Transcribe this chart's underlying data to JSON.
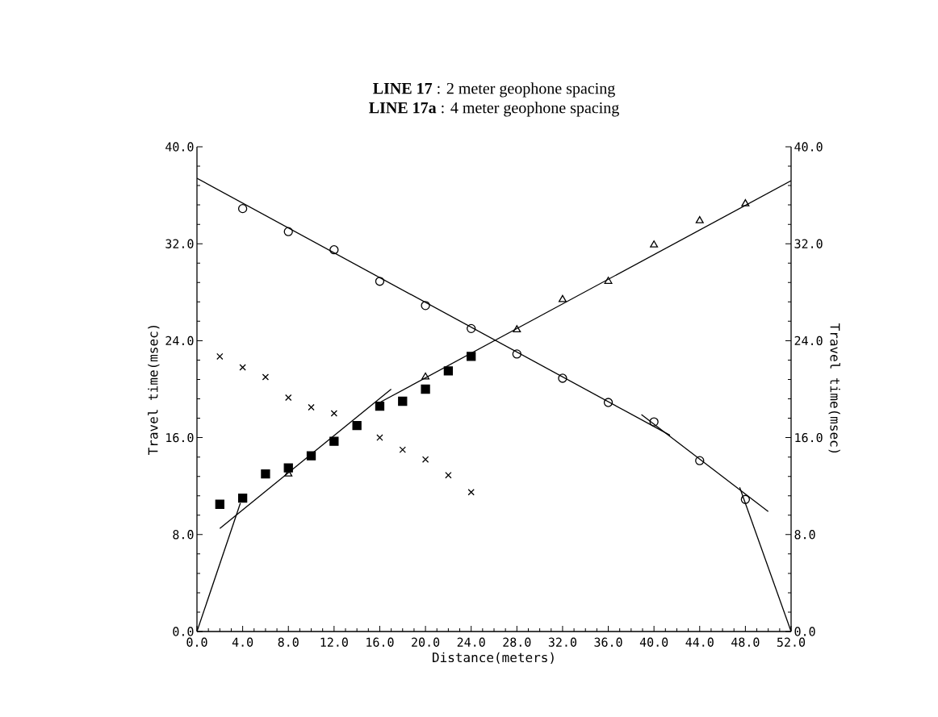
{
  "chart_data": {
    "type": "scatter",
    "title": "**LINE 17**  : 2 meter geophone spacing",
    "subtitle": "**LINE 17a** : 4 meter geophone spacing",
    "xlabel": "Distance(meters)",
    "ylabel": "Travel time(msec)",
    "y2label": "Travel time(msec)",
    "xlim": [
      0,
      52
    ],
    "ylim": [
      0,
      40
    ],
    "y2lim": [
      0,
      40
    ],
    "xticks": [
      {
        "value": 0,
        "label": "0.0"
      },
      {
        "value": 4,
        "label": "4.0"
      },
      {
        "value": 8,
        "label": "8.0"
      },
      {
        "value": 12,
        "label": "12.0"
      },
      {
        "value": 16,
        "label": "16.0"
      },
      {
        "value": 20,
        "label": "20.0"
      },
      {
        "value": 24,
        "label": "24.0"
      },
      {
        "value": 28,
        "label": "28.0"
      },
      {
        "value": 32,
        "label": "32.0"
      },
      {
        "value": 36,
        "label": "36.0"
      },
      {
        "value": 40,
        "label": "40.0"
      },
      {
        "value": 44,
        "label": "44.0"
      },
      {
        "value": 48,
        "label": "48.0"
      },
      {
        "value": 52,
        "label": "52.0"
      }
    ],
    "yticks": [
      {
        "value": 0,
        "label": "0.0"
      },
      {
        "value": 8,
        "label": "8.0"
      },
      {
        "value": 16,
        "label": "16.0"
      },
      {
        "value": 24,
        "label": "24.0"
      },
      {
        "value": 32,
        "label": "32.0"
      },
      {
        "value": 40,
        "label": "40.0"
      }
    ],
    "y2ticks": [
      {
        "value": 0,
        "label": "0.0"
      },
      {
        "value": 8,
        "label": "8.0"
      },
      {
        "value": 16,
        "label": "16.0"
      },
      {
        "value": 24,
        "label": "24.0"
      },
      {
        "value": 32,
        "label": "32.0"
      },
      {
        "value": 40,
        "label": "40.0"
      }
    ],
    "grid": false,
    "series": [
      {
        "marker": "circle",
        "color": "#000000",
        "x": [
          4,
          8,
          12,
          16,
          20,
          24,
          28,
          32,
          36,
          40,
          44,
          48
        ],
        "values": [
          34.9,
          33.0,
          31.5,
          28.9,
          26.9,
          25.0,
          22.9,
          20.9,
          18.9,
          17.3,
          14.1,
          10.9
        ]
      },
      {
        "marker": "triangle",
        "color": "#000000",
        "x": [
          8,
          20,
          28,
          32,
          36,
          40,
          44,
          48
        ],
        "values": [
          13.0,
          21.0,
          24.9,
          27.4,
          28.9,
          31.9,
          33.9,
          35.3
        ]
      },
      {
        "marker": "square",
        "color": "#000000",
        "x": [
          2,
          4,
          6,
          8,
          10,
          12,
          14,
          16,
          18,
          20,
          22,
          24
        ],
        "values": [
          10.5,
          11.0,
          13.0,
          13.5,
          14.5,
          15.7,
          17.0,
          18.6,
          19.0,
          20.0,
          21.5,
          22.7
        ]
      },
      {
        "marker": "cross",
        "color": "#000000",
        "x": [
          2,
          4,
          6,
          8,
          10,
          12,
          16,
          18,
          20,
          22,
          24
        ],
        "values": [
          22.7,
          21.8,
          21.0,
          19.3,
          18.5,
          18.0,
          16.0,
          15.0,
          14.2,
          12.9,
          11.5
        ]
      },
      {
        "type": "line",
        "marker": "none",
        "color": "#000000",
        "x": [
          0,
          3.8
        ],
        "values": [
          0,
          10.6
        ]
      },
      {
        "type": "line",
        "marker": "none",
        "color": "#000000",
        "x": [
          2,
          17
        ],
        "values": [
          8.5,
          20.0
        ]
      },
      {
        "type": "line",
        "marker": "none",
        "color": "#000000",
        "x": [
          16,
          52
        ],
        "values": [
          18.9,
          37.2
        ]
      },
      {
        "type": "line",
        "marker": "none",
        "color": "#000000",
        "x": [
          0,
          41.4
        ],
        "values": [
          37.4,
          16.2
        ]
      },
      {
        "type": "line",
        "marker": "none",
        "color": "#000000",
        "x": [
          38.9,
          50
        ],
        "values": [
          17.9,
          9.9
        ]
      },
      {
        "type": "line",
        "marker": "none",
        "color": "#000000",
        "x": [
          47.5,
          52
        ],
        "values": [
          11.9,
          0
        ]
      }
    ]
  }
}
